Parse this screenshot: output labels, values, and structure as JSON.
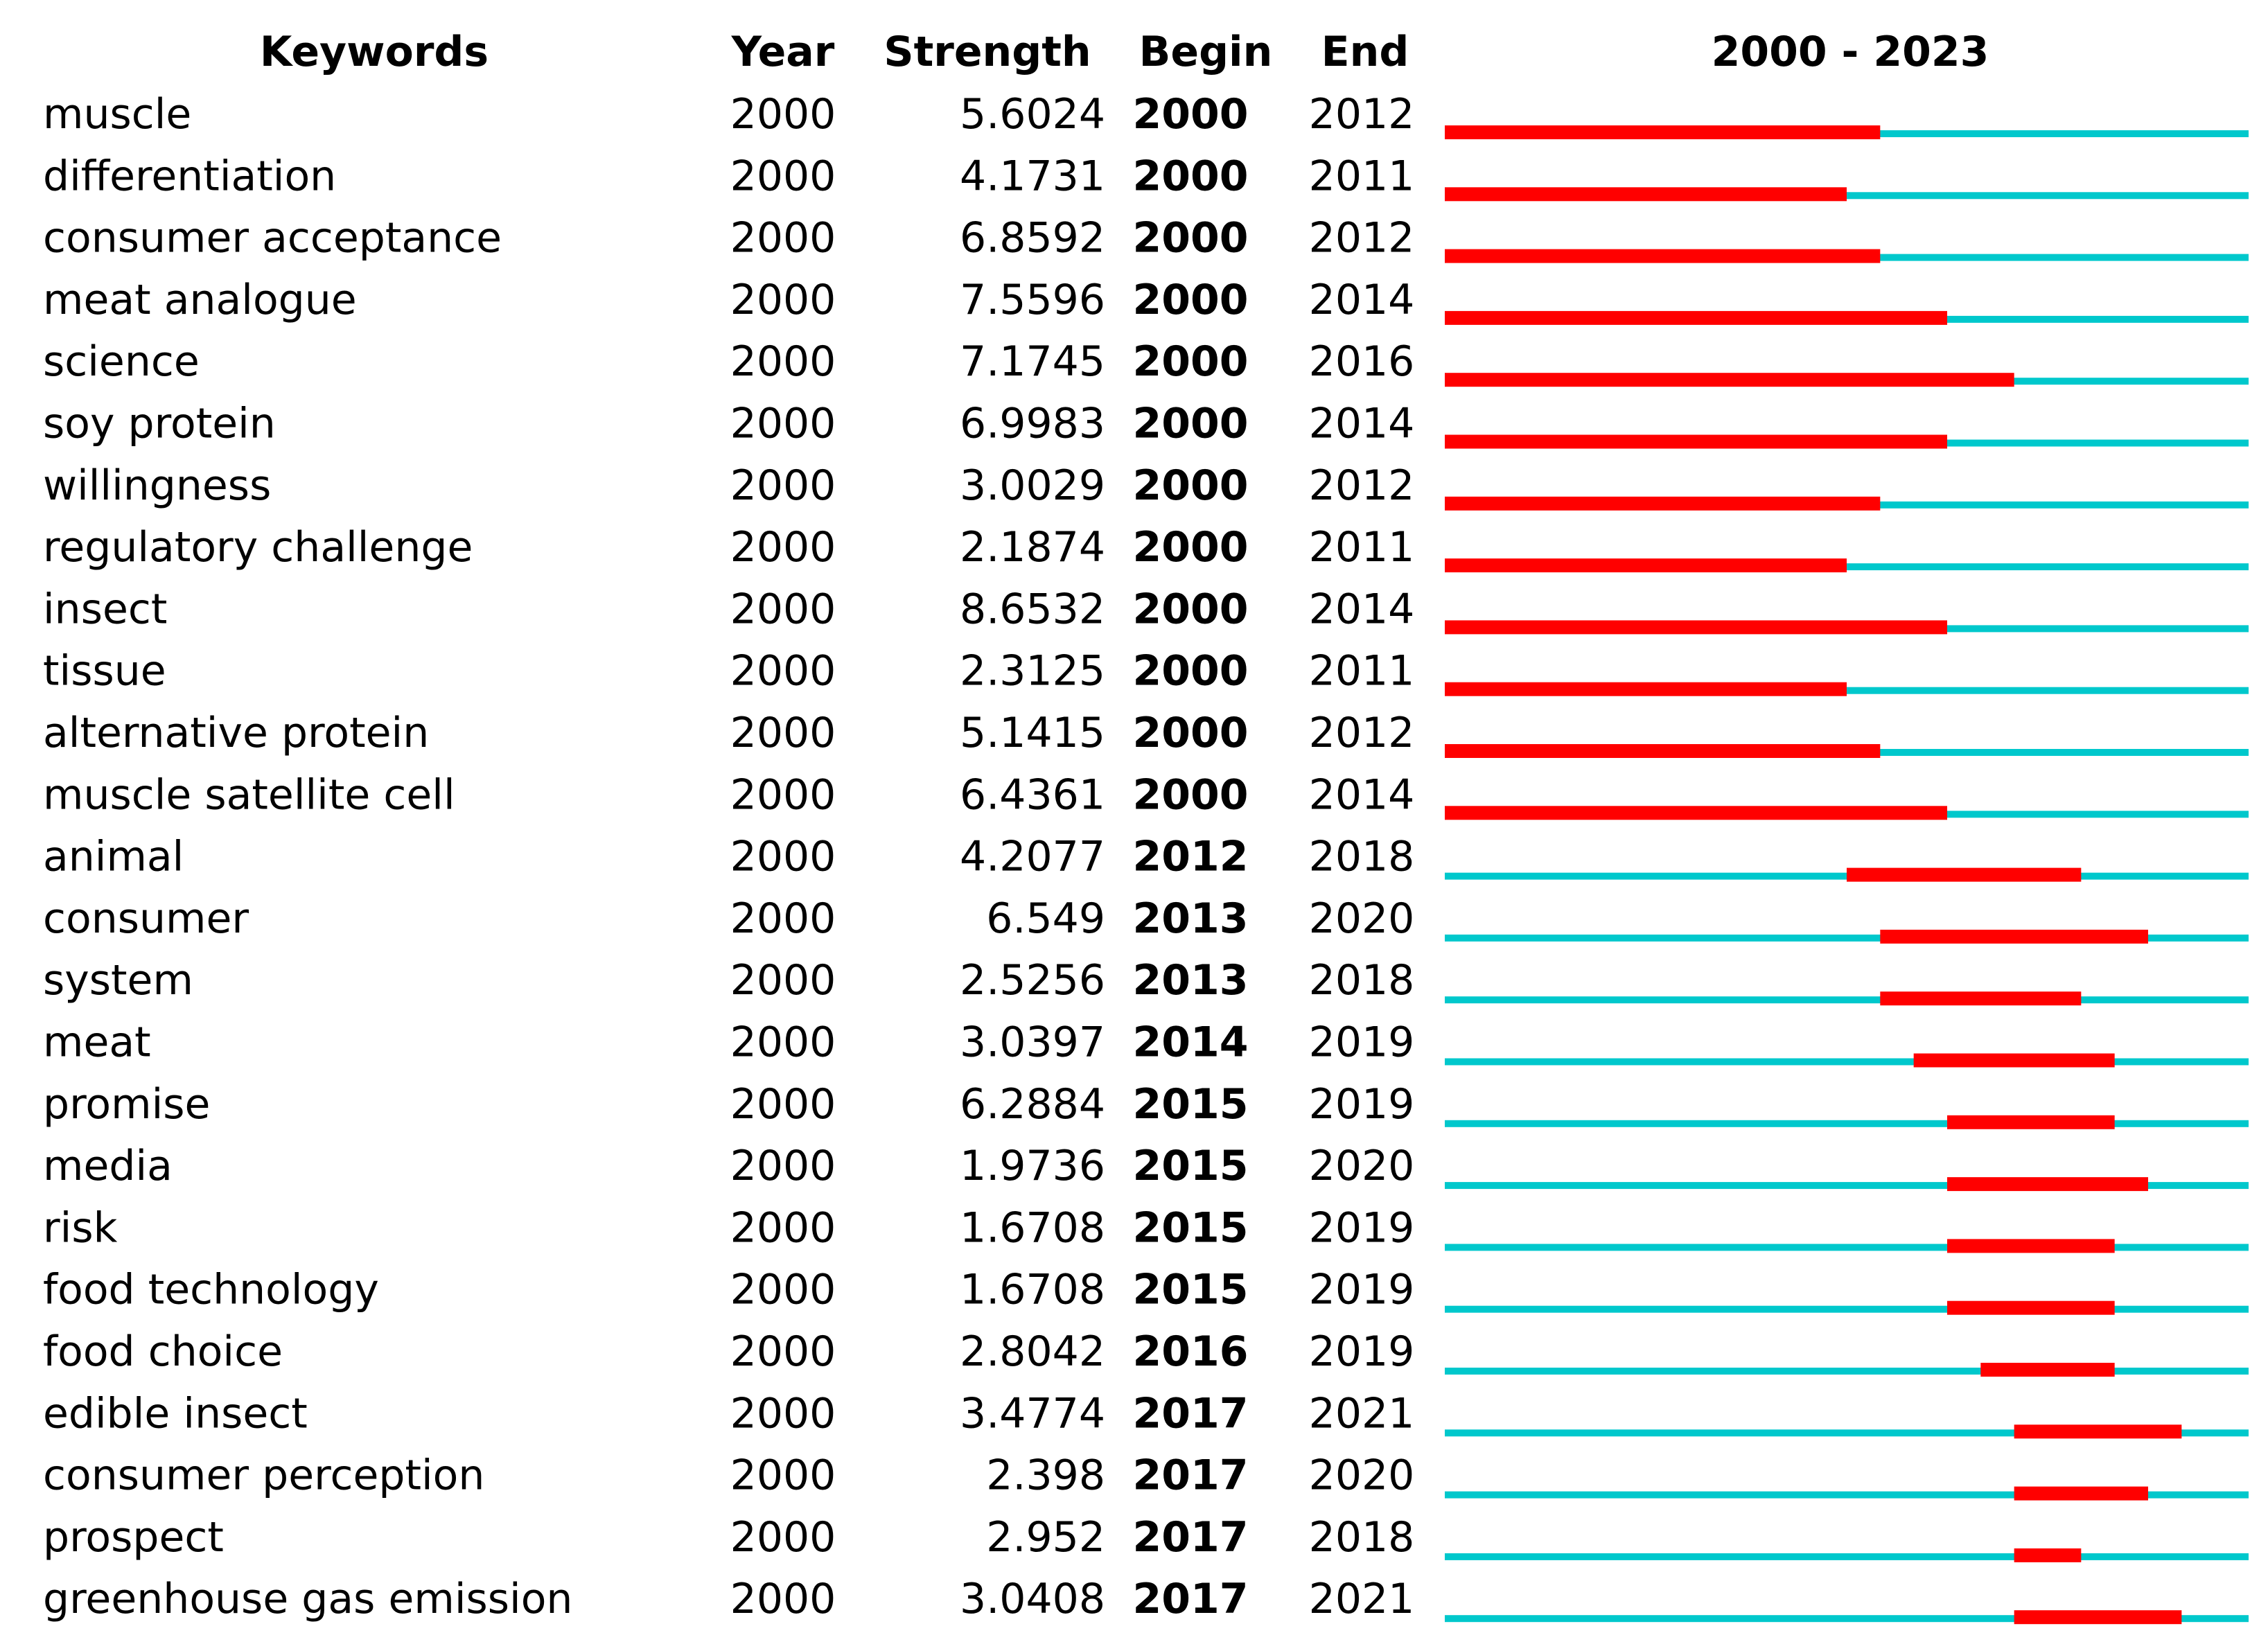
{
  "chart_data": {
    "type": "table",
    "headers": {
      "keywords": "Keywords",
      "year": "Year",
      "strength": "Strength",
      "begin": "Begin",
      "end": "End",
      "range": "2000 - 2023"
    },
    "range_start": 2000,
    "range_end": 2023,
    "colors": {
      "burst": "#ff0000",
      "base": "#00c8cc"
    },
    "rows": [
      {
        "keyword": "muscle",
        "year": "2000",
        "strength": "5.6024",
        "begin": "2000",
        "end": "2012"
      },
      {
        "keyword": "differentiation",
        "year": "2000",
        "strength": "4.1731",
        "begin": "2000",
        "end": "2011"
      },
      {
        "keyword": "consumer acceptance",
        "year": "2000",
        "strength": "6.8592",
        "begin": "2000",
        "end": "2012"
      },
      {
        "keyword": "meat analogue",
        "year": "2000",
        "strength": "7.5596",
        "begin": "2000",
        "end": "2014"
      },
      {
        "keyword": "science",
        "year": "2000",
        "strength": "7.1745",
        "begin": "2000",
        "end": "2016"
      },
      {
        "keyword": "soy protein",
        "year": "2000",
        "strength": "6.9983",
        "begin": "2000",
        "end": "2014"
      },
      {
        "keyword": "willingness",
        "year": "2000",
        "strength": "3.0029",
        "begin": "2000",
        "end": "2012"
      },
      {
        "keyword": "regulatory challenge",
        "year": "2000",
        "strength": "2.1874",
        "begin": "2000",
        "end": "2011"
      },
      {
        "keyword": "insect",
        "year": "2000",
        "strength": "8.6532",
        "begin": "2000",
        "end": "2014"
      },
      {
        "keyword": "tissue",
        "year": "2000",
        "strength": "2.3125",
        "begin": "2000",
        "end": "2011"
      },
      {
        "keyword": "alternative protein",
        "year": "2000",
        "strength": "5.1415",
        "begin": "2000",
        "end": "2012"
      },
      {
        "keyword": "muscle satellite cell",
        "year": "2000",
        "strength": "6.4361",
        "begin": "2000",
        "end": "2014"
      },
      {
        "keyword": "animal",
        "year": "2000",
        "strength": "4.2077",
        "begin": "2012",
        "end": "2018"
      },
      {
        "keyword": "consumer",
        "year": "2000",
        "strength": "6.549",
        "begin": "2013",
        "end": "2020"
      },
      {
        "keyword": "system",
        "year": "2000",
        "strength": "2.5256",
        "begin": "2013",
        "end": "2018"
      },
      {
        "keyword": "meat",
        "year": "2000",
        "strength": "3.0397",
        "begin": "2014",
        "end": "2019"
      },
      {
        "keyword": "promise",
        "year": "2000",
        "strength": "6.2884",
        "begin": "2015",
        "end": "2019"
      },
      {
        "keyword": "media",
        "year": "2000",
        "strength": "1.9736",
        "begin": "2015",
        "end": "2020"
      },
      {
        "keyword": "risk",
        "year": "2000",
        "strength": "1.6708",
        "begin": "2015",
        "end": "2019"
      },
      {
        "keyword": "food technology",
        "year": "2000",
        "strength": "1.6708",
        "begin": "2015",
        "end": "2019"
      },
      {
        "keyword": "food choice",
        "year": "2000",
        "strength": "2.8042",
        "begin": "2016",
        "end": "2019"
      },
      {
        "keyword": "edible insect",
        "year": "2000",
        "strength": "3.4774",
        "begin": "2017",
        "end": "2021"
      },
      {
        "keyword": "consumer perception",
        "year": "2000",
        "strength": "2.398",
        "begin": "2017",
        "end": "2020"
      },
      {
        "keyword": "prospect",
        "year": "2000",
        "strength": "2.952",
        "begin": "2017",
        "end": "2018"
      },
      {
        "keyword": "greenhouse gas emission",
        "year": "2000",
        "strength": "3.0408",
        "begin": "2017",
        "end": "2021"
      }
    ]
  }
}
